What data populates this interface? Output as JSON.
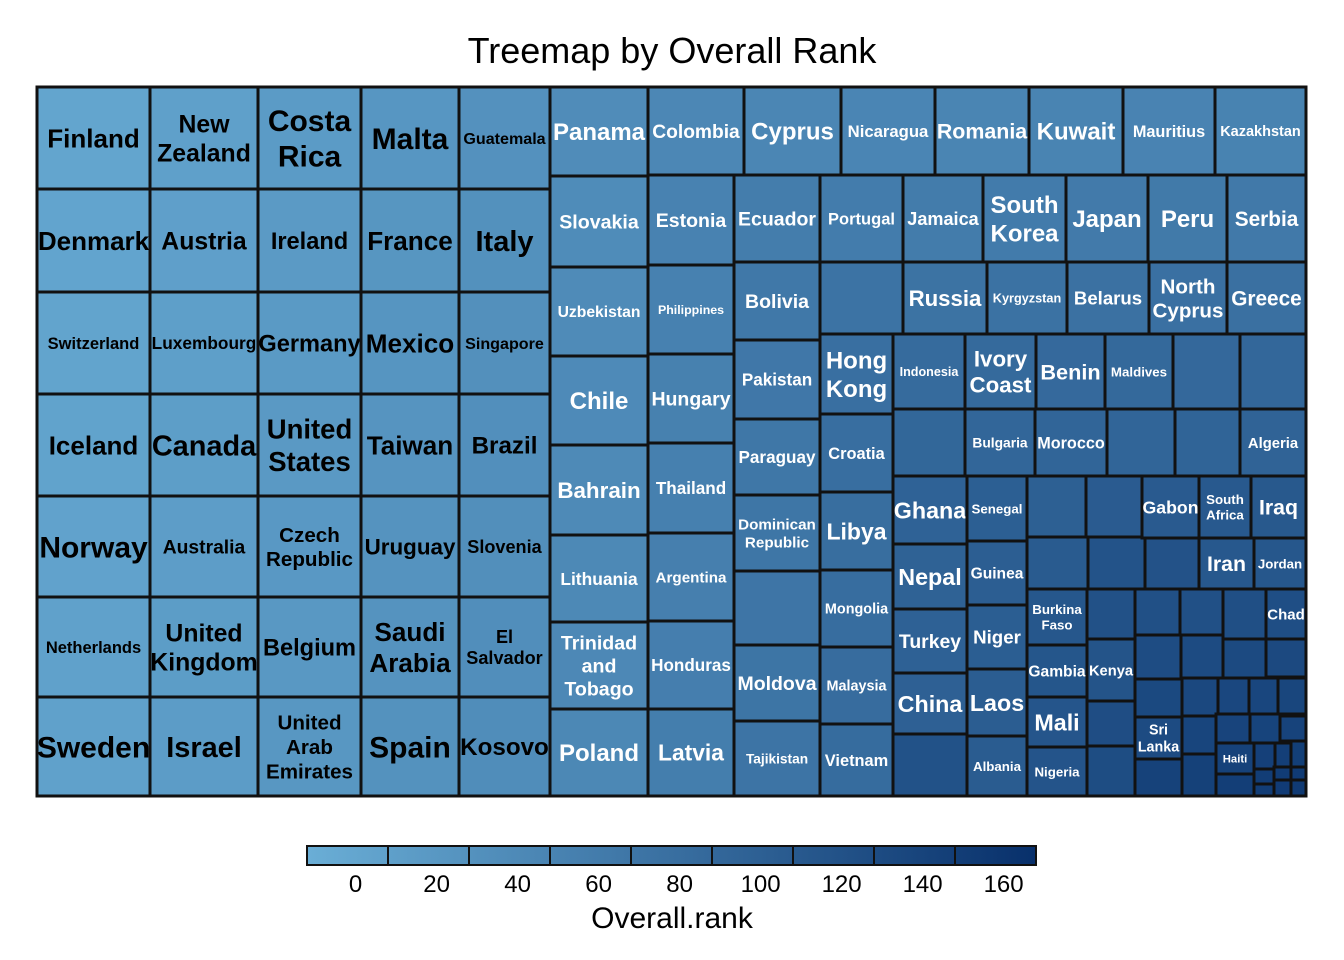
{
  "chart_data": {
    "type": "treemap",
    "title": "Treemap by Overall Rank",
    "legend": {
      "title": "Overall.rank",
      "ticks": [
        0,
        20,
        40,
        60,
        80,
        100,
        120,
        140,
        160
      ],
      "range": [
        -12,
        168
      ],
      "low_color": "#6aaed6",
      "high_color": "#08306b",
      "placement": "bottom"
    },
    "columns": [
      [
        "Finland",
        "Denmark",
        "Switzerland",
        "Iceland",
        "Norway",
        "Netherlands",
        "Sweden"
      ],
      [
        "New Zealand",
        "Austria",
        "Luxembourg",
        "Canada",
        "Australia",
        "United Kingdom",
        "Israel"
      ],
      [
        "Costa Rica",
        "Ireland",
        "Germany",
        "United States",
        "Czech Republic",
        "Belgium",
        "United Arab Emirates"
      ],
      [
        "Malta",
        "France",
        "Mexico",
        "Taiwan",
        "Uruguay",
        "Saudi Arabia",
        "Spain"
      ],
      [
        "Guatemala",
        "Italy",
        "Singapore",
        "Brazil",
        "Slovenia",
        "El Salvador",
        "Kosovo"
      ]
    ],
    "nodes": [
      {
        "name": "Finland",
        "rank": 1
      },
      {
        "name": "Denmark",
        "rank": 2
      },
      {
        "name": "Switzerland",
        "rank": 3
      },
      {
        "name": "Iceland",
        "rank": 4
      },
      {
        "name": "Norway",
        "rank": 5
      },
      {
        "name": "Netherlands",
        "rank": 6
      },
      {
        "name": "Sweden",
        "rank": 7
      },
      {
        "name": "New Zealand",
        "rank": 8
      },
      {
        "name": "Austria",
        "rank": 9
      },
      {
        "name": "Luxembourg",
        "rank": 10
      },
      {
        "name": "Canada",
        "rank": 11
      },
      {
        "name": "Australia",
        "rank": 12
      },
      {
        "name": "United Kingdom",
        "rank": 13
      },
      {
        "name": "Israel",
        "rank": 14
      },
      {
        "name": "Costa Rica",
        "rank": 15
      },
      {
        "name": "Ireland",
        "rank": 16
      },
      {
        "name": "Germany",
        "rank": 17
      },
      {
        "name": "United States",
        "rank": 18
      },
      {
        "name": "Czech Republic",
        "rank": 19
      },
      {
        "name": "Belgium",
        "rank": 20
      },
      {
        "name": "United Arab Emirates",
        "rank": 21
      },
      {
        "name": "Malta",
        "rank": 22
      },
      {
        "name": "France",
        "rank": 23
      },
      {
        "name": "Mexico",
        "rank": 24
      },
      {
        "name": "Taiwan",
        "rank": 25
      },
      {
        "name": "Uruguay",
        "rank": 26
      },
      {
        "name": "Saudi Arabia",
        "rank": 27
      },
      {
        "name": "Spain",
        "rank": 28
      },
      {
        "name": "Guatemala",
        "rank": 29
      },
      {
        "name": "Italy",
        "rank": 30
      },
      {
        "name": "Singapore",
        "rank": 31
      },
      {
        "name": "Brazil",
        "rank": 32
      },
      {
        "name": "Slovenia",
        "rank": 33
      },
      {
        "name": "El Salvador",
        "rank": 34
      },
      {
        "name": "Kosovo",
        "rank": 35
      },
      {
        "name": "Panama",
        "rank": 36
      },
      {
        "name": "Slovakia",
        "rank": 37
      },
      {
        "name": "Uzbekistan",
        "rank": 38
      },
      {
        "name": "Chile",
        "rank": 39
      },
      {
        "name": "Bahrain",
        "rank": 40
      },
      {
        "name": "Lithuania",
        "rank": 41
      },
      {
        "name": "Trinidad and Tobago",
        "rank": 42
      },
      {
        "name": "Poland",
        "rank": 43
      },
      {
        "name": "Colombia",
        "rank": 44
      },
      {
        "name": "Cyprus",
        "rank": 45
      },
      {
        "name": "Nicaragua",
        "rank": 46
      },
      {
        "name": "Romania",
        "rank": 47
      },
      {
        "name": "Kuwait",
        "rank": 48
      },
      {
        "name": "Mauritius",
        "rank": 49
      },
      {
        "name": "Kazakhstan",
        "rank": 50
      },
      {
        "name": "Estonia",
        "rank": 51
      },
      {
        "name": "Philippines",
        "rank": 52
      },
      {
        "name": "Hungary",
        "rank": 53
      },
      {
        "name": "Thailand",
        "rank": 54
      },
      {
        "name": "Argentina",
        "rank": 55
      },
      {
        "name": "Honduras",
        "rank": 56
      },
      {
        "name": "Latvia",
        "rank": 57
      },
      {
        "name": "Ecuador",
        "rank": 58
      },
      {
        "name": "Portugal",
        "rank": 59
      },
      {
        "name": "Jamaica",
        "rank": 60
      },
      {
        "name": "South Korea",
        "rank": 61
      },
      {
        "name": "Japan",
        "rank": 62
      },
      {
        "name": "Peru",
        "rank": 63
      },
      {
        "name": "Serbia",
        "rank": 64
      },
      {
        "name": "Bolivia",
        "rank": 65
      },
      {
        "name": "Pakistan",
        "rank": 66
      },
      {
        "name": "Paraguay",
        "rank": 67
      },
      {
        "name": "Dominican Republic",
        "rank": 68
      },
      {
        "name": "Moldova",
        "rank": 70
      },
      {
        "name": "Tajikistan",
        "rank": 71
      },
      {
        "name": "Russia",
        "rank": 73
      },
      {
        "name": "Kyrgyzstan",
        "rank": 74
      },
      {
        "name": "Belarus",
        "rank": 75
      },
      {
        "name": "North Cyprus",
        "rank": 76
      },
      {
        "name": "Greece",
        "rank": 77
      },
      {
        "name": "Hong Kong",
        "rank": 78
      },
      {
        "name": "Croatia",
        "rank": 79
      },
      {
        "name": "Libya",
        "rank": 80
      },
      {
        "name": "Mongolia",
        "rank": 81
      },
      {
        "name": "Malaysia",
        "rank": 82
      },
      {
        "name": "Vietnam",
        "rank": 83
      },
      {
        "name": "Indonesia",
        "rank": 84
      },
      {
        "name": "Ivory Coast",
        "rank": 85
      },
      {
        "name": "Benin",
        "rank": 86
      },
      {
        "name": "Maldives",
        "rank": 87
      },
      {
        "name": "Bulgaria",
        "rank": 91
      },
      {
        "name": "Morocco",
        "rank": 92
      },
      {
        "name": "Algeria",
        "rank": 95
      },
      {
        "name": "Ghana",
        "rank": 96
      },
      {
        "name": "Nepal",
        "rank": 97
      },
      {
        "name": "Turkey",
        "rank": 98
      },
      {
        "name": "China",
        "rank": 99
      },
      {
        "name": "Senegal",
        "rank": 101
      },
      {
        "name": "Guinea",
        "rank": 102
      },
      {
        "name": "Niger",
        "rank": 103
      },
      {
        "name": "Laos",
        "rank": 104
      },
      {
        "name": "Albania",
        "rank": 105
      },
      {
        "name": "Gabon",
        "rank": 108
      },
      {
        "name": "South Africa",
        "rank": 109
      },
      {
        "name": "Iraq",
        "rank": 110
      },
      {
        "name": "Iran",
        "rank": 111
      },
      {
        "name": "Jordan",
        "rank": 112
      },
      {
        "name": "Burkina Faso",
        "rank": 113
      },
      {
        "name": "Gambia",
        "rank": 114
      },
      {
        "name": "Mali",
        "rank": 115
      },
      {
        "name": "Nigeria",
        "rank": 116
      },
      {
        "name": "Kenya",
        "rank": 117
      },
      {
        "name": "Chad",
        "rank": 125
      },
      {
        "name": "Sri Lanka",
        "rank": 130
      },
      {
        "name": "Haiti",
        "rank": 143
      }
    ]
  }
}
